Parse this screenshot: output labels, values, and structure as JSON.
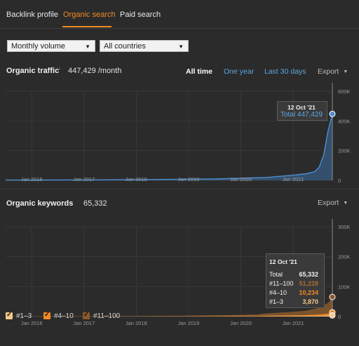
{
  "tabs": [
    {
      "label": "Backlink profile",
      "active": false
    },
    {
      "label": "Organic search",
      "active": true
    },
    {
      "label": "Paid search",
      "active": false
    }
  ],
  "filters": {
    "metric": "Monthly volume",
    "country": "All countries"
  },
  "traffic": {
    "title": "Organic traffic",
    "info_mark": "i",
    "value": "447,429 /month",
    "ranges": [
      "All time",
      "One year",
      "Last 30 days"
    ],
    "active_range": "All time",
    "export_label": "Export"
  },
  "keywords": {
    "title": "Organic keywords",
    "value": "65,332",
    "export_label": "Export"
  },
  "colors": {
    "accent": "#f08a24",
    "traffic_line": "#4d8fd1",
    "kw_1_3": "#f6c88c",
    "kw_4_10": "#f08a24",
    "kw_11_100": "#8a5a2b"
  },
  "chart_data": [
    {
      "type": "area",
      "title": "Organic traffic",
      "x": [
        "2015-07",
        "2016-01",
        "2016-07",
        "2017-01",
        "2017-07",
        "2018-01",
        "2018-07",
        "2019-01",
        "2019-07",
        "2020-01",
        "2020-07",
        "2021-01",
        "2021-04",
        "2021-06",
        "2021-07",
        "2021-08",
        "2021-09",
        "2021-10"
      ],
      "series": [
        {
          "name": "Total",
          "values": [
            2000,
            2500,
            3000,
            3500,
            4000,
            5000,
            6000,
            8000,
            10000,
            14000,
            20000,
            35000,
            45000,
            60000,
            90000,
            170000,
            330000,
            447429
          ]
        }
      ],
      "x_ticks": [
        "Jan 2016",
        "Jan 2017",
        "Jan 2018",
        "Jan 2019",
        "Jan 2020",
        "Jan 2021"
      ],
      "y_ticks": [
        "600K",
        "400K",
        "200K",
        "0"
      ],
      "ylim": [
        0,
        600000
      ],
      "tooltip": {
        "date": "12 Oct '21",
        "label": "Total",
        "value": "447,429"
      }
    },
    {
      "type": "area",
      "title": "Organic keywords",
      "x": [
        "2015-07",
        "2016-01",
        "2017-01",
        "2018-01",
        "2019-01",
        "2020-01",
        "2020-05",
        "2020-06",
        "2020-07",
        "2021-01",
        "2021-04",
        "2021-07",
        "2021-09",
        "2021-10"
      ],
      "series": [
        {
          "name": "#1–3",
          "values": [
            50,
            80,
            100,
            150,
            300,
            600,
            700,
            800,
            900,
            1300,
            1600,
            2200,
            3000,
            3870
          ]
        },
        {
          "name": "#4–10",
          "values": [
            50,
            100,
            150,
            250,
            500,
            1000,
            1200,
            1500,
            1700,
            2500,
            3000,
            4500,
            7000,
            10234
          ]
        },
        {
          "name": "#11–100",
          "values": [
            200,
            300,
            500,
            800,
            2000,
            4000,
            5000,
            7000,
            8000,
            12000,
            15000,
            22000,
            35000,
            51228
          ]
        }
      ],
      "x_ticks": [
        "Jan 2016",
        "Jan 2017",
        "Jan 2018",
        "Jan 2019",
        "Jan 2020",
        "Jan 2021"
      ],
      "y_ticks": [
        "300K",
        "200K",
        "100K",
        "0"
      ],
      "ylim": [
        0,
        300000
      ],
      "tooltip": {
        "date": "12 Oct '21",
        "rows": [
          {
            "label": "Total",
            "value": "65,332"
          },
          {
            "label": "#11–100",
            "value": "51,228"
          },
          {
            "label": "#4–10",
            "value": "10,234"
          },
          {
            "label": "#1–3",
            "value": "3,870"
          }
        ]
      },
      "legend": [
        "#1–3",
        "#4–10",
        "#11–100"
      ]
    }
  ]
}
